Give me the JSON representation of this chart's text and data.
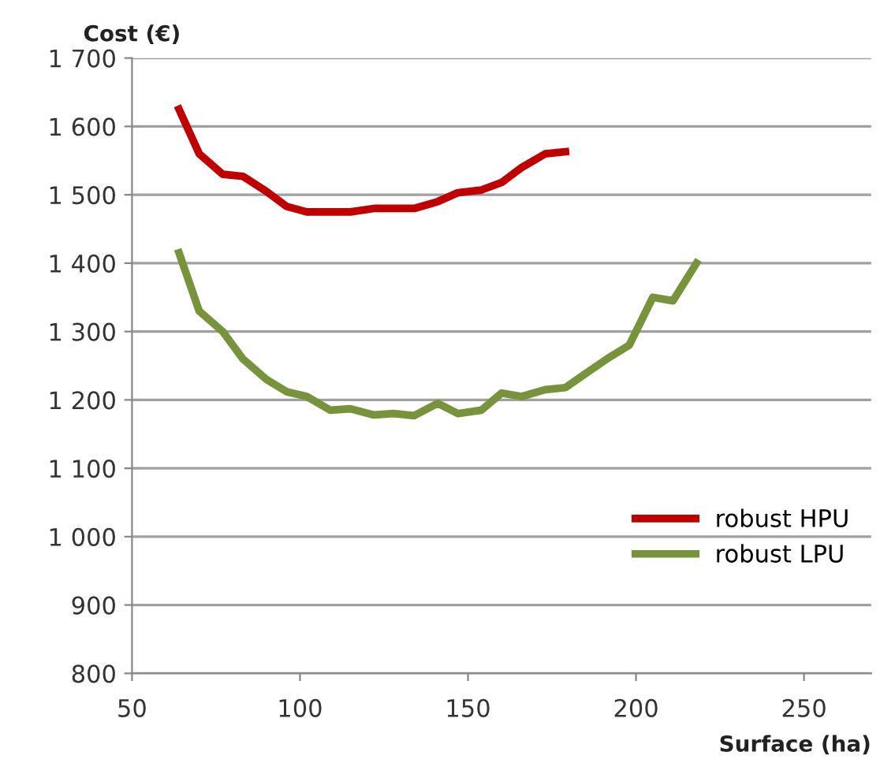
{
  "chart_data": {
    "type": "line",
    "xlabel": "Surface (ha)",
    "ylabel": "Cost (€)",
    "xlim": [
      50,
      270
    ],
    "xticks": [
      50,
      100,
      150,
      200,
      250
    ],
    "ylim": [
      800,
      1700
    ],
    "yticks": [
      800,
      900,
      {
        "value": 1000,
        "label": "1 000"
      },
      {
        "value": 1100,
        "label": "1 100"
      },
      {
        "value": 1200,
        "label": "1 200"
      },
      {
        "value": 1300,
        "label": "1 300"
      },
      {
        "value": 1400,
        "label": "1 400"
      },
      {
        "value": 1500,
        "label": "1 500"
      },
      {
        "value": 1600,
        "label": "1 600"
      },
      {
        "value": 1700,
        "label": "1 700"
      }
    ],
    "grid": "y",
    "legend": "right",
    "marker": "none",
    "line_style": "solid",
    "series": [
      {
        "name": "robust HPU",
        "color": "#c00000",
        "x": [
          64,
          70,
          77,
          83,
          90,
          96,
          102,
          109,
          115,
          122,
          128,
          134,
          141,
          147,
          154,
          160,
          166,
          173,
          179
        ],
        "values": [
          1625,
          1560,
          1530,
          1527,
          1505,
          1483,
          1475,
          1475,
          1475,
          1480,
          1480,
          1480,
          1490,
          1503,
          1507,
          1518,
          1540,
          1560,
          1563
        ]
      },
      {
        "name": "robust LPU",
        "color": "#77933c",
        "x": [
          64,
          70,
          77,
          83,
          90,
          96,
          102,
          109,
          115,
          122,
          128,
          134,
          141,
          147,
          154,
          160,
          166,
          173,
          179,
          186,
          192,
          198,
          205,
          211,
          218
        ],
        "values": [
          1415,
          1330,
          1300,
          1260,
          1230,
          1212,
          1205,
          1185,
          1187,
          1178,
          1180,
          1177,
          1195,
          1180,
          1185,
          1210,
          1205,
          1215,
          1218,
          1242,
          1262,
          1280,
          1350,
          1345,
          1400
        ]
      }
    ]
  }
}
